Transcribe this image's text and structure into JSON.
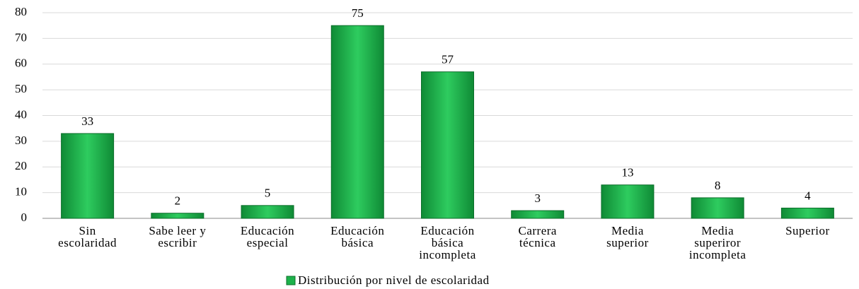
{
  "chart_data": {
    "type": "bar",
    "categories": [
      "Sin\nescolaridad",
      "Sabe leer y\nescribir",
      "Educación\nespecial",
      "Educación\nbásica",
      "Educación\nbásica\nincompleta",
      "Carrera\ntécnica",
      "Media\nsuperior",
      "Media\nsuperiror\nincompleta",
      "Superior"
    ],
    "series": [
      {
        "name": "Distribución por nivel de escolaridad",
        "color": "#1db24b",
        "values": [
          33,
          2,
          5,
          75,
          57,
          3,
          13,
          8,
          4
        ]
      }
    ],
    "ylim": [
      0,
      80
    ],
    "yticks": [
      0,
      10,
      20,
      30,
      40,
      50,
      60,
      70,
      80
    ],
    "grid": true,
    "legend": "bottom"
  }
}
